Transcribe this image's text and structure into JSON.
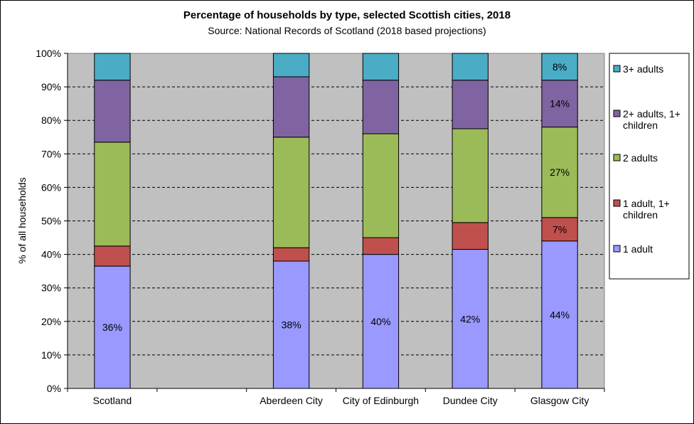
{
  "chart_data": {
    "type": "bar",
    "stacked": true,
    "title": "Percentage of households by type, selected Scottish cities, 2018",
    "subtitle": "Source: National Records of Scotland  (2018 based projections)",
    "xlabel": "",
    "ylabel": "% of all households",
    "ylim": [
      0,
      100
    ],
    "y_ticks": [
      "0%",
      "10%",
      "20%",
      "30%",
      "40%",
      "50%",
      "60%",
      "70%",
      "80%",
      "90%",
      "100%"
    ],
    "grid": true,
    "legend_position": "right",
    "categories": [
      "Scotland",
      "",
      "Aberdeen City",
      "City of Edinburgh",
      "Dundee City",
      "Glasgow City"
    ],
    "series": [
      {
        "name": "1 adult",
        "color": "#9999ff",
        "values": [
          36.5,
          null,
          38,
          40,
          41.5,
          44
        ],
        "labels": [
          "36%",
          "",
          "38%",
          "40%",
          "42%",
          "44%"
        ]
      },
      {
        "name": "1 adult, 1+ children",
        "color": "#c0504d",
        "values": [
          6,
          null,
          4,
          5,
          8,
          7
        ],
        "labels": [
          "",
          "",
          "",
          "",
          "",
          "7%"
        ]
      },
      {
        "name": "2 adults",
        "color": "#9bbb59",
        "values": [
          31,
          null,
          33,
          31,
          28,
          27
        ],
        "labels": [
          "",
          "",
          "",
          "",
          "",
          "27%"
        ]
      },
      {
        "name": "2+ adults, 1+ children",
        "color": "#8064a2",
        "values": [
          18.5,
          null,
          18,
          16,
          14.5,
          14
        ],
        "labels": [
          "",
          "",
          "",
          "",
          "",
          "14%"
        ]
      },
      {
        "name": "3+ adults",
        "color": "#4bacc6",
        "values": [
          8,
          null,
          7,
          8,
          8,
          8
        ],
        "labels": [
          "",
          "",
          "",
          "",
          "",
          "8%"
        ]
      }
    ],
    "legend_order": [
      "3+ adults",
      "2+ adults, 1+ children",
      "2 adults",
      "1 adult, 1+ children",
      "1 adult"
    ],
    "plot_background": "#c0c0c0"
  }
}
